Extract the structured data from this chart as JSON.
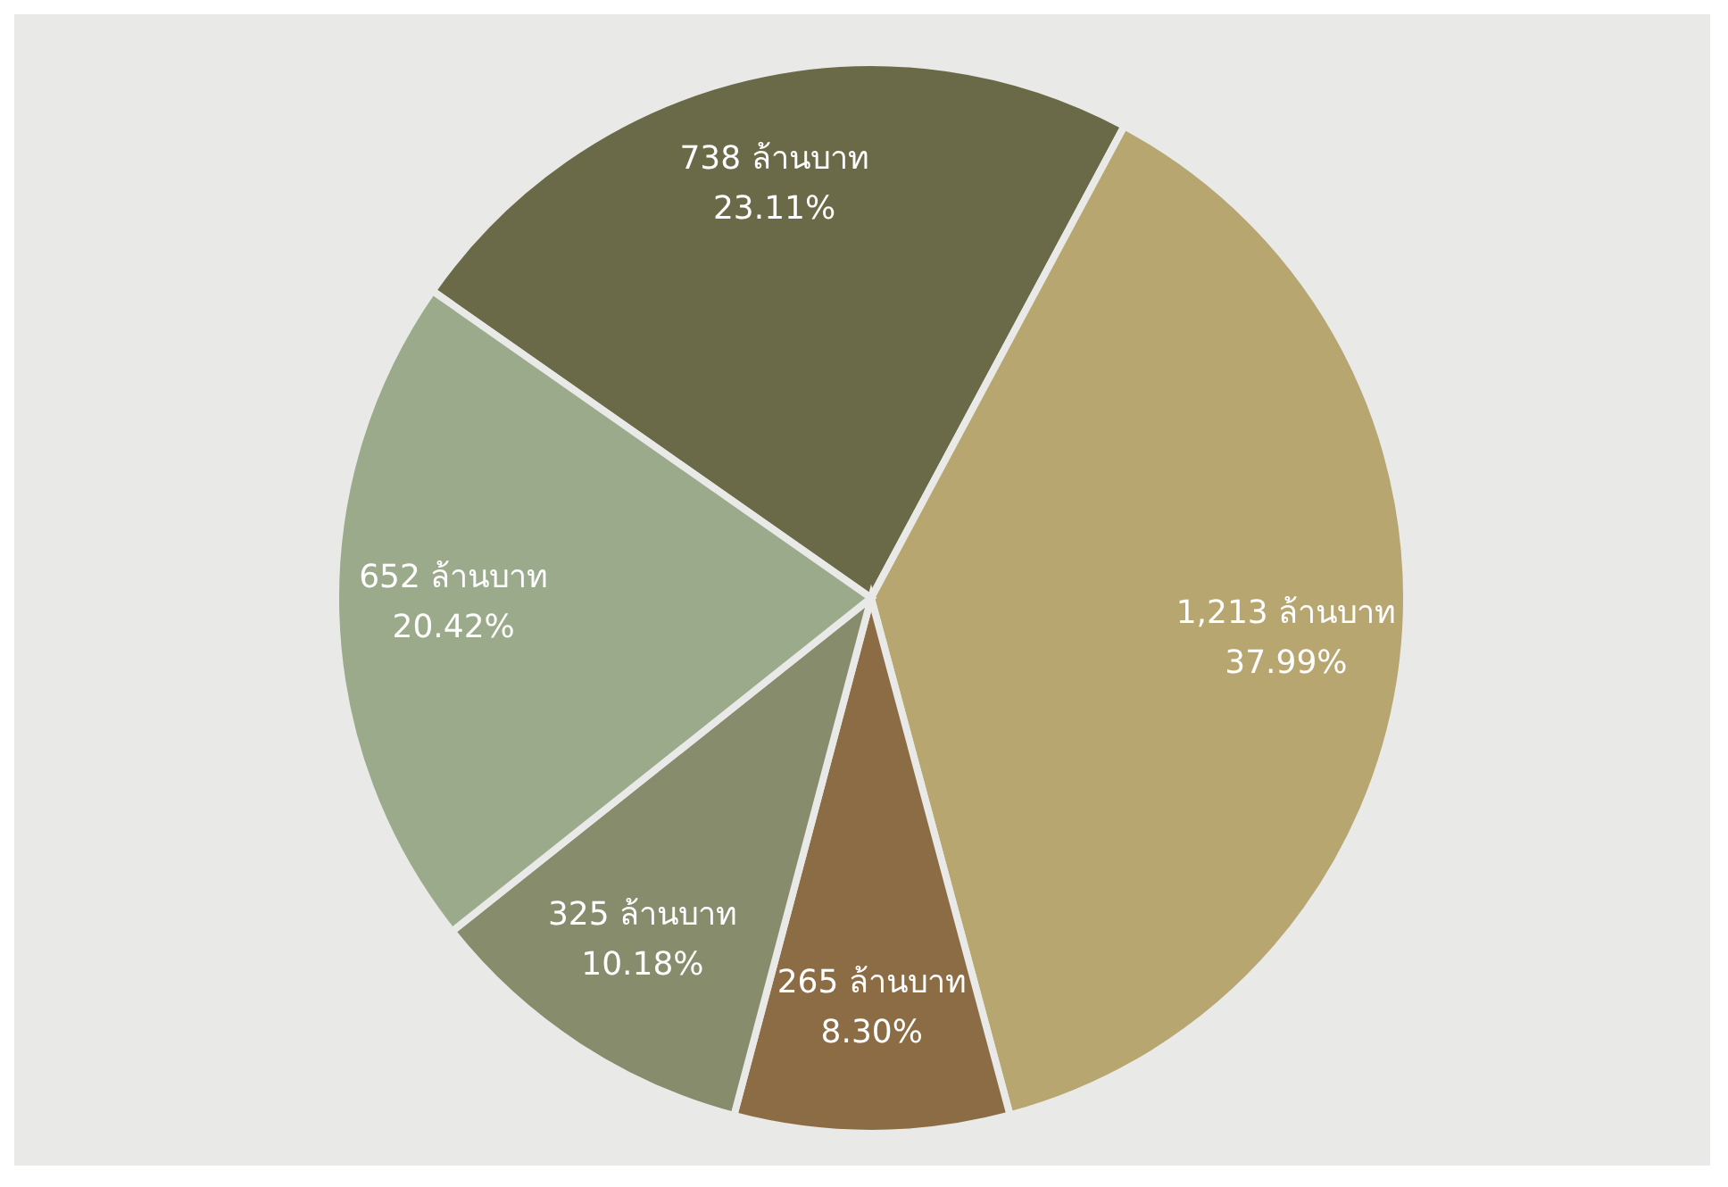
{
  "chart_data": {
    "type": "pie",
    "categories": [
      null,
      null,
      null,
      null,
      null
    ],
    "values": [
      738,
      1213,
      265,
      325,
      652
    ],
    "colors": [
      "#6b6a48",
      "#b8a670",
      "#8c6c44",
      "#868c6c",
      "#9caa8c"
    ],
    "value_labels": [
      "738 ล้านบาท\n23.11%",
      "1,213 ล้านบาท\n37.99%",
      "265 ล้านบาท\n8.30%",
      "325 ล้านบาท\n10.18%",
      "652 ล้านบาท\n20.42%"
    ]
  }
}
